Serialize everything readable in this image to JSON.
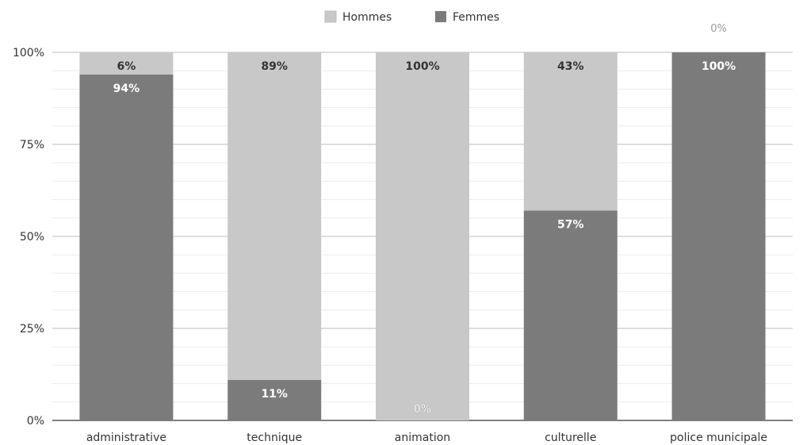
{
  "chart_data": {
    "type": "bar",
    "stacked": true,
    "normalized": true,
    "categories": [
      "administrative",
      "technique",
      "animation",
      "culturelle",
      "police municipale"
    ],
    "series": [
      {
        "name": "Hommes",
        "values": [
          6,
          89,
          100,
          43,
          0
        ],
        "labels": [
          "6%",
          "89%",
          "100%",
          "43%",
          "0%"
        ],
        "color": "#c8c8c8"
      },
      {
        "name": "Femmes",
        "values": [
          94,
          11,
          0,
          57,
          100
        ],
        "labels": [
          "94%",
          "11%",
          "0%",
          "57%",
          "100%"
        ],
        "color": "#7b7b7b"
      }
    ],
    "yticks": [
      "0%",
      "25%",
      "50%",
      "75%",
      "100%"
    ],
    "ylim": [
      0,
      100
    ],
    "legend": "top-center",
    "grid": true
  }
}
